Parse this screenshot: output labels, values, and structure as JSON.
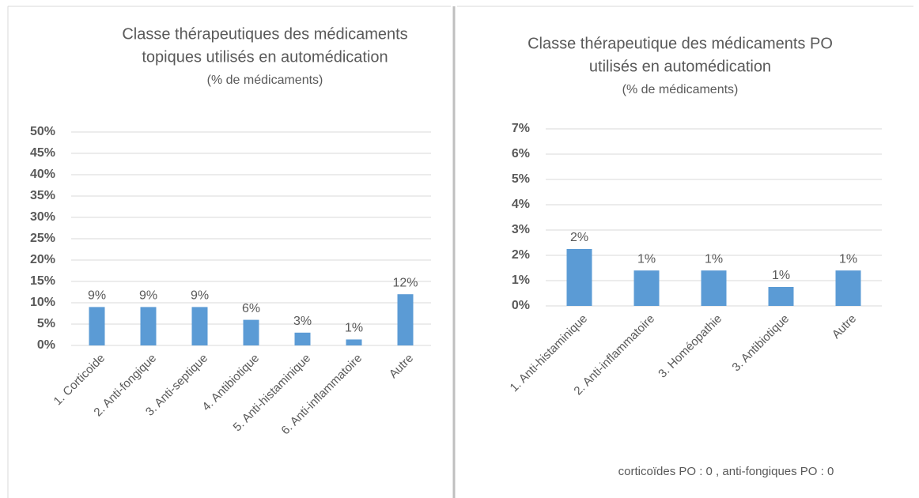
{
  "chart_data": [
    {
      "type": "bar",
      "title": [
        "Classe thérapeutiques des médicaments",
        "topiques utilisés en automédication"
      ],
      "subtitle": "(% de médicaments)",
      "categories": [
        "1. Corticoide",
        "2. Anti-fongique",
        "3. Anti-septique",
        "4. Antibiotique",
        "5. Anti-histaminique",
        "6. Anti-inflammatoire",
        "Autre"
      ],
      "values": [
        9,
        9,
        9,
        6,
        3,
        1.4,
        12
      ],
      "value_labels": [
        "9%",
        "9%",
        "9%",
        "6%",
        "3%",
        "1%",
        "12%"
      ],
      "color": "#5b9bd5",
      "ylim": [
        0,
        50
      ],
      "yticks": [
        {
          "value": 0,
          "label": "0%"
        },
        {
          "value": 5,
          "label": "5%"
        },
        {
          "value": 10,
          "label": "10%"
        },
        {
          "value": 15,
          "label": "15%"
        },
        {
          "value": 20,
          "label": "20%"
        },
        {
          "value": 25,
          "label": "25%"
        },
        {
          "value": 30,
          "label": "30%"
        },
        {
          "value": 35,
          "label": "35%"
        },
        {
          "value": 40,
          "label": "40%"
        },
        {
          "value": 45,
          "label": "45%"
        },
        {
          "value": 50,
          "label": "50%"
        }
      ],
      "grid": true
    },
    {
      "type": "bar",
      "title": [
        "Classe thérapeutique des médicaments PO",
        "utilisés en automédication"
      ],
      "subtitle": "(% de médicaments)",
      "categories": [
        "1. Anti-histaminique",
        "2. Anti-inflammatoire",
        "3. Homéopathie",
        "3. Antibiotique",
        "Autre"
      ],
      "values": [
        2.25,
        1.4,
        1.4,
        0.75,
        1.4
      ],
      "value_labels": [
        "2%",
        "1%",
        "1%",
        "1%",
        "1%"
      ],
      "color": "#5b9bd5",
      "ylim": [
        0,
        7
      ],
      "yticks": [
        {
          "value": 0,
          "label": "0%"
        },
        {
          "value": 1,
          "label": "1%"
        },
        {
          "value": 2,
          "label": "2%"
        },
        {
          "value": 3,
          "label": "3%"
        },
        {
          "value": 4,
          "label": "4%"
        },
        {
          "value": 5,
          "label": "5%"
        },
        {
          "value": 6,
          "label": "6%"
        },
        {
          "value": 7,
          "label": "7%"
        }
      ],
      "grid": true,
      "annotation": "corticoïdes PO : 0 , anti-fongiques PO : 0"
    }
  ]
}
